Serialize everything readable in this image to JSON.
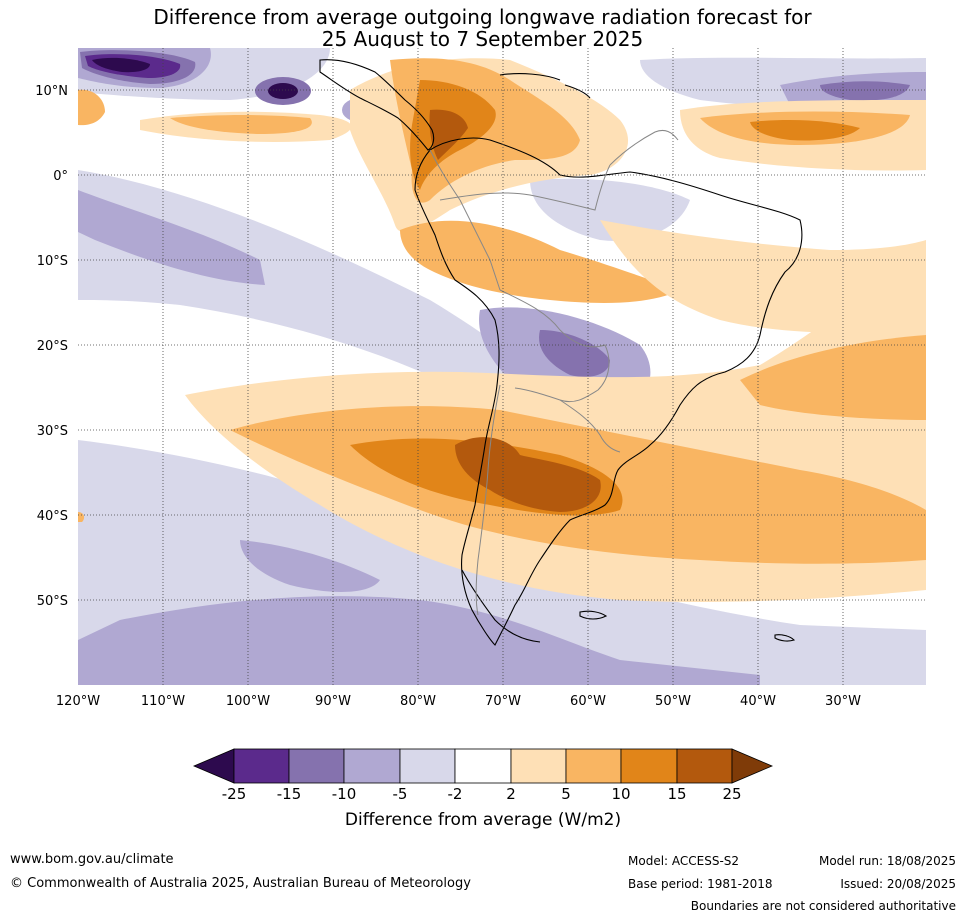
{
  "title": {
    "line1": "Difference from average outgoing longwave radiation forecast for",
    "line2": "25 August to 7 September 2025"
  },
  "map": {
    "lat_labels": [
      "10°N",
      "0°",
      "10°S",
      "20°S",
      "30°S",
      "40°S",
      "50°S"
    ],
    "lon_labels": [
      "120°W",
      "110°W",
      "100°W",
      "90°W",
      "80°W",
      "70°W",
      "60°W",
      "50°W",
      "40°W",
      "30°W"
    ],
    "colors": {
      "m25": "#2d0a4e",
      "m15": "#5b2a8c",
      "m10": "#8572ae",
      "m5": "#b0a8d2",
      "m2": "#d8d8ea",
      "zero": "#ffffff",
      "p2": "#fee0b6",
      "p5": "#f9b562",
      "p10": "#e18519",
      "p15": "#b3590d",
      "p25": "#7f3b08",
      "coast": "#000000",
      "border": "#888888"
    }
  },
  "colorbar": {
    "ticks": [
      "-25",
      "-15",
      "-10",
      "-5",
      "-2",
      "2",
      "5",
      "10",
      "15",
      "25"
    ],
    "label": "Difference from average (W/m2)"
  },
  "footer": {
    "url": "www.bom.gov.au/climate",
    "copyright": "© Commonwealth of Australia 2025, Australian Bureau of Meteorology",
    "model": "Model: ACCESS-S2",
    "base_period": "Base period: 1981-2018",
    "model_run": "Model run: 18/08/2025",
    "issued": "Issued: 20/08/2025",
    "disclaimer": "Boundaries are not considered authoritative"
  }
}
